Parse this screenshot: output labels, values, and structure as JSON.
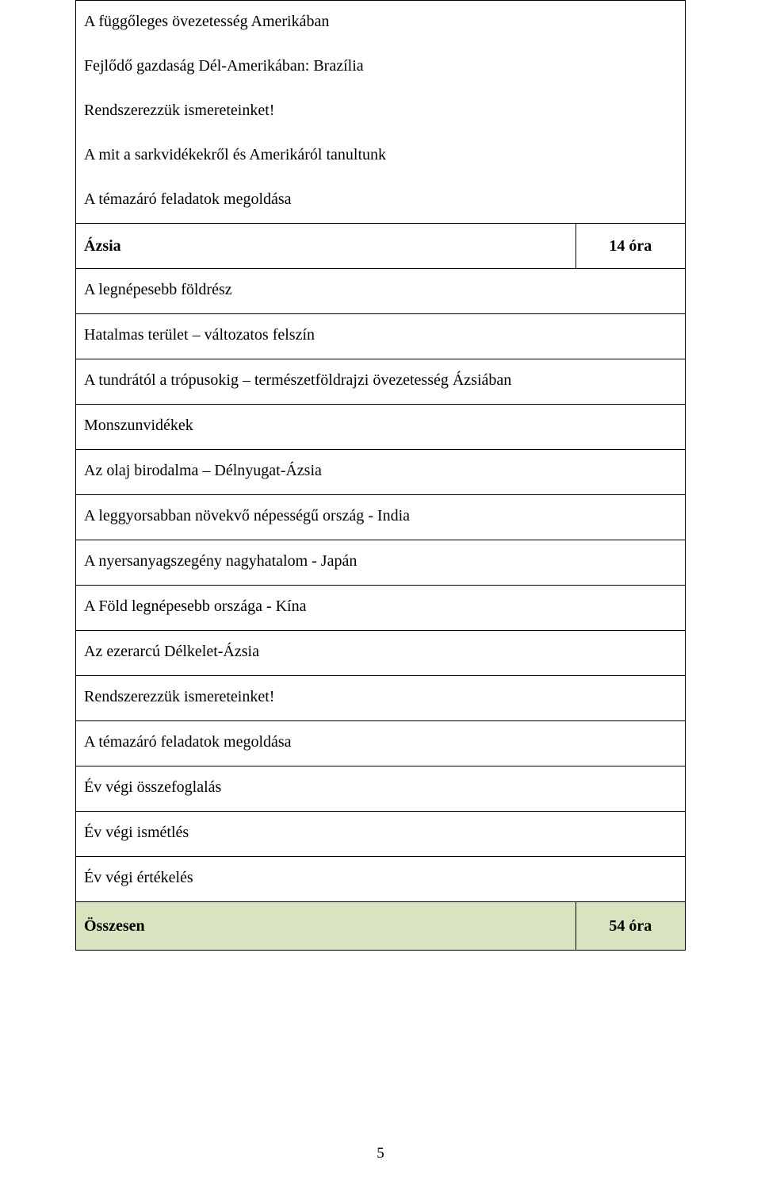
{
  "colors": {
    "border": "#000000",
    "total_bg": "#d8e3bf",
    "page_bg": "#ffffff",
    "text": "#000000"
  },
  "column_widths_pct": [
    82,
    18
  ],
  "rows": [
    {
      "type": "multi",
      "lines": [
        "A függőleges övezetesség Amerikában",
        "Fejlődő gazdaság Dél-Amerikában: Brazília",
        "Rendszerezzük ismereteinket!",
        "A mit a sarkvidékekről és Amerikáról tanultunk",
        "A témazáró feladatok megoldása"
      ]
    },
    {
      "type": "heading",
      "label": "Ázsia",
      "hours": "14 óra"
    },
    {
      "type": "single",
      "text": "A legnépesebb földrész"
    },
    {
      "type": "single",
      "text": "Hatalmas terület – változatos felszín"
    },
    {
      "type": "single",
      "text": "A tundrától a trópusokig – természetföldrajzi övezetesség Ázsiában"
    },
    {
      "type": "single",
      "text": "Monszunvidékek"
    },
    {
      "type": "single",
      "text": "Az olaj birodalma – Délnyugat-Ázsia"
    },
    {
      "type": "single",
      "text": "A leggyorsabban növekvő népességű ország - India"
    },
    {
      "type": "single",
      "text": "A nyersanyagszegény nagyhatalom - Japán"
    },
    {
      "type": "single",
      "text": "A Föld legnépesebb országa - Kína"
    },
    {
      "type": "single",
      "text": "Az ezerarcú Délkelet-Ázsia"
    },
    {
      "type": "single",
      "text": "Rendszerezzük ismereteinket!"
    },
    {
      "type": "single",
      "text": "A témazáró feladatok megoldása"
    },
    {
      "type": "single",
      "text": "Év végi összefoglalás"
    },
    {
      "type": "single",
      "text": "Év végi ismétlés"
    },
    {
      "type": "single",
      "text": "Év végi értékelés"
    },
    {
      "type": "total",
      "label": "Összesen",
      "hours": "54 óra"
    }
  ],
  "page_number": "5"
}
